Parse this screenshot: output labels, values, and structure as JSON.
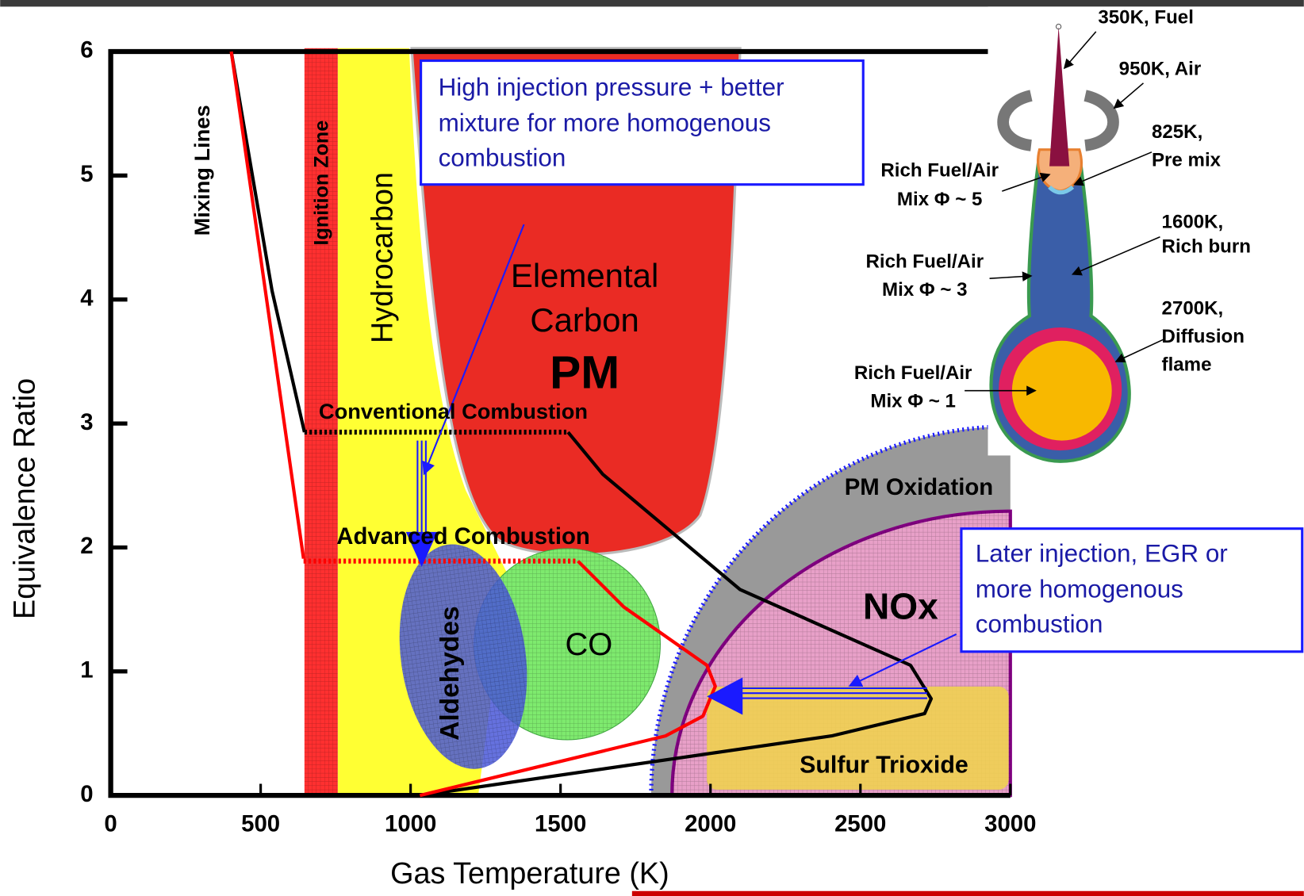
{
  "chart_data": {
    "type": "line",
    "xlabel": "Gas Temperature (K)",
    "ylabel": "Equivalence Ratio",
    "xlim": [
      0,
      3000
    ],
    "xticks": [
      0,
      500,
      1000,
      1500,
      2000,
      2500,
      3000
    ],
    "ylim": [
      0,
      6
    ],
    "yticks": [
      0,
      1,
      2,
      3,
      4,
      5,
      6
    ],
    "series": [
      {
        "color": "#000000",
        "dashed": false,
        "x": [
          402,
          538,
          646
        ],
        "values": [
          6,
          4.07,
          2.93
        ]
      },
      {
        "color": "#000000",
        "dashed": true,
        "x": [
          646,
          1525
        ],
        "values": [
          2.93,
          2.93
        ]
      },
      {
        "color": "#000000",
        "dashed": false,
        "x": [
          1525,
          1641,
          2099,
          2667,
          2736,
          2714,
          2404,
          1031
        ],
        "values": [
          2.93,
          2.59,
          1.66,
          1.05,
          0.78,
          0.66,
          0.48,
          0
        ]
      },
      {
        "color": "#ff0000",
        "dashed": false,
        "x": [
          402,
          643
        ],
        "values": [
          6,
          1.91
        ]
      },
      {
        "color": "#ff0000",
        "dashed": true,
        "x": [
          643,
          1558
        ],
        "values": [
          1.89,
          1.89
        ]
      },
      {
        "color": "#ff0000",
        "dashed": false,
        "x": [
          1558,
          1711,
          1988,
          2016,
          1975,
          1850,
          1031
        ],
        "values": [
          1.89,
          1.52,
          1.05,
          0.88,
          0.64,
          0.48,
          0
        ]
      }
    ],
    "annotations": [
      "Mixing Lines",
      "Ignition Zone",
      "Hydrocarbon",
      "Elemental",
      "Carbon",
      "PM",
      "Conventional Combustion",
      "Advanced Combustion",
      "Aldehydes",
      "CO",
      "PM Oxidation",
      "NOx",
      "Sulfur Trioxide",
      "High injection pressure + better",
      "mixture for more homogenous",
      "combustion",
      "Later injection, EGR or",
      "more homogenous",
      "combustion",
      "350K, Fuel",
      "950K, Air",
      "825K,",
      "Pre mix",
      "1600K,",
      "Rich burn",
      "2700K,",
      "Diffusion",
      "flame",
      "Rich Fuel/Air",
      "Mix Φ ~ 5",
      "Rich Fuel/Air",
      "Mix Φ ~ 3",
      "Rich Fuel/Air",
      "Mix Φ ~ 1"
    ]
  }
}
